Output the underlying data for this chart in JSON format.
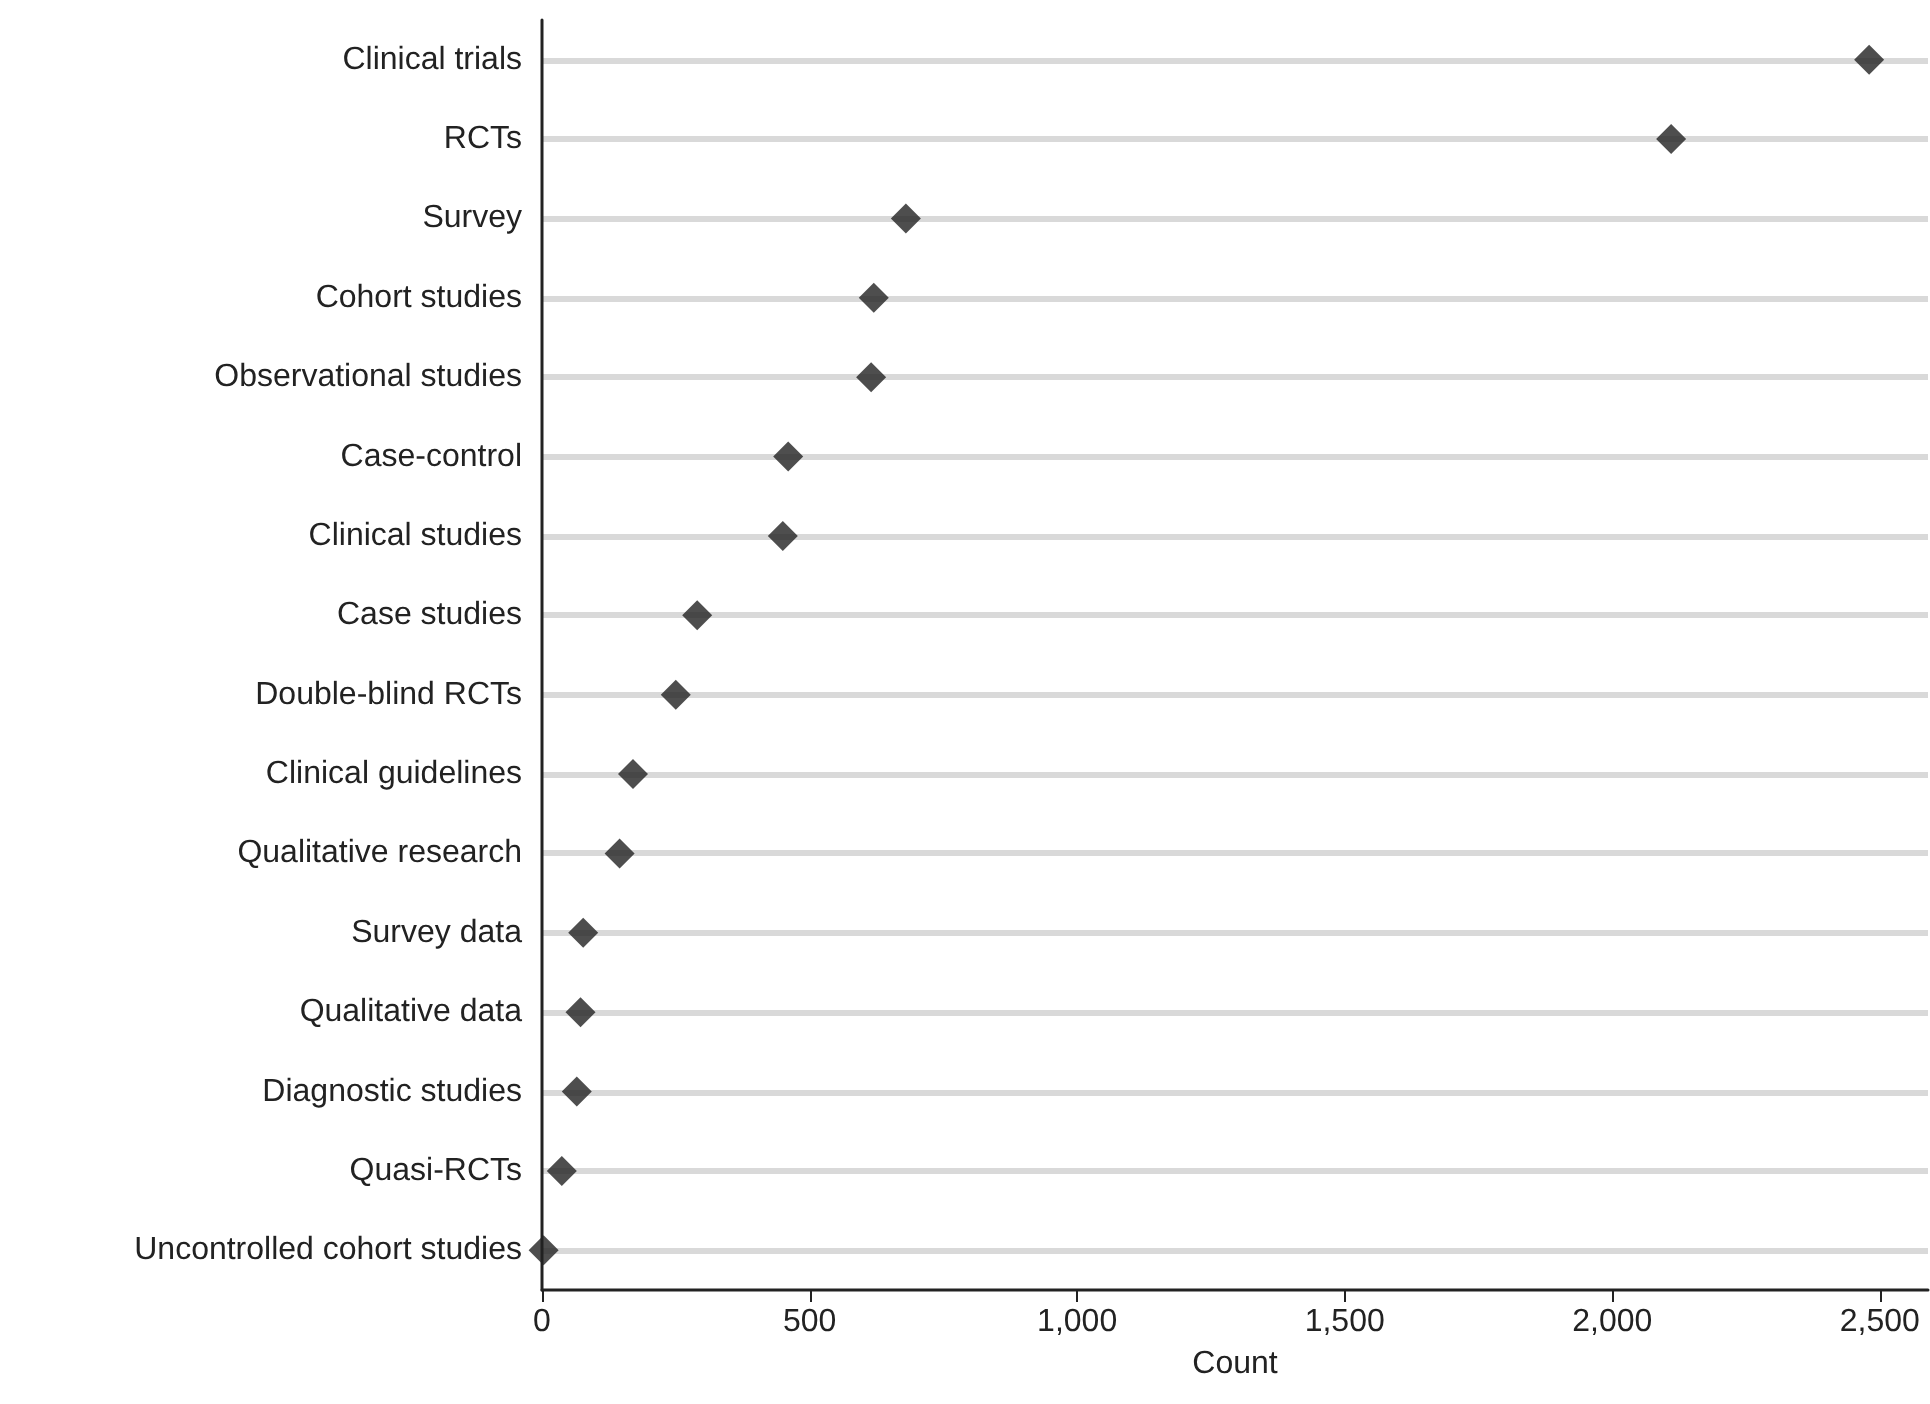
{
  "chart_data": {
    "type": "scatter",
    "orientation": "horizontal",
    "xlabel": "Count",
    "categories": [
      "Clinical trials",
      "RCTs",
      "Survey",
      "Cohort studies",
      "Observational studies",
      "Case-control",
      "Clinical studies",
      "Case studies",
      "Double-blind RCTs",
      "Clinical guidelines",
      "Qualitative research",
      "Survey data",
      "Qualitative data",
      "Diagnostic studies",
      "Quasi-RCTs",
      "Uncontrolled cohort studies"
    ],
    "values": [
      2480,
      2110,
      680,
      620,
      615,
      460,
      450,
      290,
      250,
      170,
      145,
      77,
      72,
      65,
      37,
      3
    ],
    "color": "#222222",
    "marker": "diamond",
    "xlim": [
      0,
      2590
    ],
    "xticks": [
      0,
      500,
      {
        "value": 1000,
        "label": "1,000"
      },
      {
        "value": 1500,
        "label": "1,500"
      },
      {
        "value": 2000,
        "label": "2,000"
      },
      {
        "value": 2500,
        "label": "2,500"
      }
    ],
    "grid": "y"
  }
}
